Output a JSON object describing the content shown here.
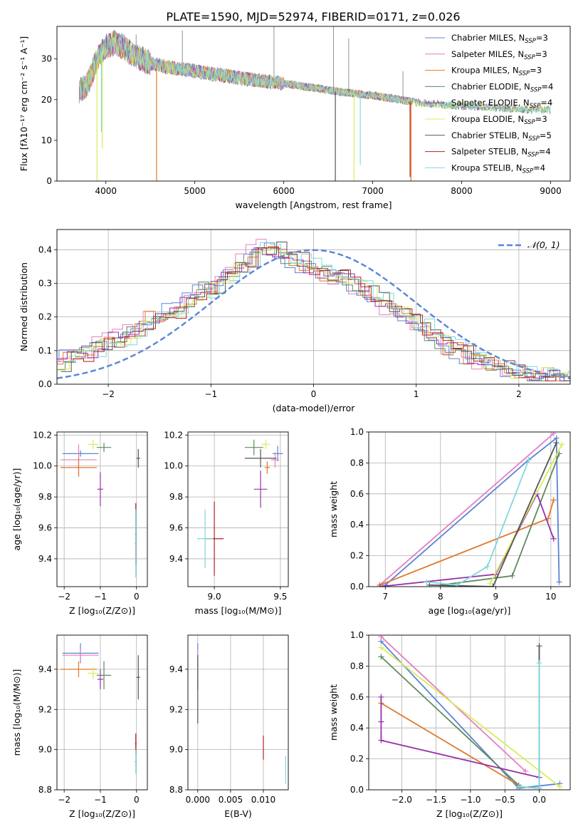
{
  "title": "PLATE=1590, MJD=52974, FIBERID=0171, z=0.026",
  "colors": {
    "Chabrier MILES": "#5b84d6",
    "Salpeter MILES": "#e47fbf",
    "Kroupa MILES": "#e0792a",
    "Chabrier ELODIE": "#5d8a5d",
    "Salpeter ELODIE": "#9b30aa",
    "Kroupa ELODIE": "#d8ec5a",
    "Chabrier STELIB": "#555555",
    "Salpeter STELIB": "#b22222",
    "Kroupa STELIB": "#7fd8dd",
    "normal_curve": "#5b84d6",
    "grid": "#b0b0b0"
  },
  "chart_data": [
    {
      "id": "spectrum",
      "type": "line",
      "title": "PLATE=1590, MJD=52974, FIBERID=0171, z=0.026",
      "xlabel": "wavelength [Angstrom, rest frame]",
      "ylabel": "Flux [fλ10⁻¹⁷ erg cm⁻² s⁻¹ A⁻¹]",
      "xlim": [
        3450,
        9220
      ],
      "ylim": [
        0,
        38
      ],
      "xticks": [
        4000,
        5000,
        6000,
        7000,
        8000,
        9000
      ],
      "yticks": [
        0,
        10,
        20,
        30
      ],
      "grid": false,
      "legend_position": "top-right",
      "legend": [
        {
          "model": "Chabrier MILES",
          "prefix": "Chabrier MILES, N",
          "sub": "SSP",
          "suffix": "=3"
        },
        {
          "model": "Salpeter MILES",
          "prefix": "Salpeter MILES, N",
          "sub": "SSP",
          "suffix": "=3"
        },
        {
          "model": "Kroupa MILES",
          "prefix": "Kroupa MILES, N",
          "sub": "SSP",
          "suffix": "=3"
        },
        {
          "model": "Chabrier ELODIE",
          "prefix": "Chabrier ELODIE, N",
          "sub": "SSP",
          "suffix": "=4"
        },
        {
          "model": "Salpeter ELODIE",
          "prefix": "Salpeter ELODIE, N",
          "sub": "SSP",
          "suffix": "=4"
        },
        {
          "model": "Kroupa ELODIE",
          "prefix": "Kroupa ELODIE, N",
          "sub": "SSP",
          "suffix": "=3"
        },
        {
          "model": "Chabrier STELIB",
          "prefix": "Chabrier STELIB, N",
          "sub": "SSP",
          "suffix": "=5"
        },
        {
          "model": "Salpeter STELIB",
          "prefix": "Salpeter STELIB, N",
          "sub": "SSP",
          "suffix": "=4"
        },
        {
          "model": "Kroupa STELIB",
          "prefix": "Kroupa STELIB, N",
          "sub": "SSP",
          "suffix": "=4"
        }
      ],
      "continuum": [
        [
          3700,
          22
        ],
        [
          3800,
          24
        ],
        [
          3900,
          30
        ],
        [
          4000,
          33
        ],
        [
          4100,
          34
        ],
        [
          4200,
          33
        ],
        [
          4300,
          31
        ],
        [
          4500,
          29
        ],
        [
          4700,
          28
        ],
        [
          5000,
          27
        ],
        [
          5300,
          26
        ],
        [
          5600,
          25
        ],
        [
          6000,
          24
        ],
        [
          6300,
          23
        ],
        [
          6600,
          22
        ],
        [
          7000,
          21
        ],
        [
          7300,
          20
        ],
        [
          7600,
          19
        ],
        [
          8000,
          18.5
        ],
        [
          8400,
          18
        ],
        [
          8800,
          17.5
        ],
        [
          9000,
          17.5
        ]
      ],
      "absorption_spikes": [
        {
          "model": "Kroupa ELODIE",
          "x": 3900,
          "y": 0
        },
        {
          "model": "Kroupa STELIB",
          "x": 3950,
          "y": 12
        },
        {
          "model": "Kroupa ELODIE",
          "x": 3960,
          "y": 8
        },
        {
          "model": "Kroupa MILES",
          "x": 4570,
          "y": 0
        },
        {
          "model": "Chabrier STELIB",
          "x": 6580,
          "y": 0
        },
        {
          "model": "Kroupa ELODIE",
          "x": 6790,
          "y": 0
        },
        {
          "model": "Kroupa STELIB",
          "x": 6860,
          "y": 4
        },
        {
          "model": "Salpeter STELIB",
          "x": 7420,
          "y": 1
        },
        {
          "model": "Kroupa MILES",
          "x": 7430,
          "y": 0
        }
      ],
      "emission_spikes": [
        {
          "x": 4340,
          "y": 36
        },
        {
          "x": 4860,
          "y": 37
        },
        {
          "x": 5890,
          "y": 38
        },
        {
          "x": 6560,
          "y": 38
        },
        {
          "x": 6730,
          "y": 35
        },
        {
          "x": 7340,
          "y": 27
        }
      ]
    },
    {
      "id": "residuals",
      "type": "histogram",
      "xlabel": "(data-model)/error",
      "ylabel": "Normed distribution",
      "xlim": [
        -2.5,
        2.5
      ],
      "ylim": [
        0,
        0.46
      ],
      "xticks": [
        -2,
        -1,
        0,
        1,
        2
      ],
      "yticks": [
        0.0,
        0.1,
        0.2,
        0.3,
        0.4
      ],
      "grid": true,
      "legend_position": "top-right",
      "curve_label": "𝒩(0, 1)",
      "bin_width": 0.1,
      "bin_start": -2.5,
      "base_hist": [
        0.06,
        0.08,
        0.09,
        0.1,
        0.12,
        0.13,
        0.14,
        0.16,
        0.18,
        0.2,
        0.21,
        0.22,
        0.24,
        0.26,
        0.28,
        0.29,
        0.31,
        0.34,
        0.37,
        0.4,
        0.41,
        0.4,
        0.38,
        0.37,
        0.35,
        0.34,
        0.33,
        0.32,
        0.31,
        0.29,
        0.27,
        0.25,
        0.23,
        0.21,
        0.19,
        0.17,
        0.15,
        0.13,
        0.11,
        0.1,
        0.08,
        0.07,
        0.06,
        0.05,
        0.04,
        0.035,
        0.03,
        0.03,
        0.025,
        0.02
      ]
    },
    {
      "id": "age_vs_Z",
      "type": "errorbar",
      "xlabel": "Z [log₁₀(Z/Z⊙)]",
      "ylabel": "age  [log₁₀(age/yr)]",
      "xlim": [
        -2.2,
        0.3
      ],
      "ylim": [
        9.22,
        10.22
      ],
      "xticks": [
        -2,
        -1,
        0
      ],
      "yticks": [
        9.4,
        9.6,
        9.8,
        10.0,
        10.2
      ],
      "grid": true,
      "points": [
        {
          "model": "Chabrier MILES",
          "x": -1.55,
          "xerr": 0.5,
          "y": 10.08,
          "yerr": 0.02
        },
        {
          "model": "Salpeter MILES",
          "x": -1.6,
          "xerr": 0.5,
          "y": 10.04,
          "yerr": 0.1
        },
        {
          "model": "Kroupa MILES",
          "x": -1.6,
          "xerr": 0.5,
          "y": 9.99,
          "yerr": 0.06
        },
        {
          "model": "Chabrier ELODIE",
          "x": -0.9,
          "xerr": 0.2,
          "y": 10.12,
          "yerr": 0.03
        },
        {
          "model": "Salpeter ELODIE",
          "x": -1.0,
          "xerr": 0.08,
          "y": 9.85,
          "yerr": 0.11
        },
        {
          "model": "Kroupa ELODIE",
          "x": -1.2,
          "xerr": 0.15,
          "y": 10.14,
          "yerr": 0.03
        },
        {
          "model": "Chabrier STELIB",
          "x": 0.05,
          "xerr": 0.05,
          "y": 10.05,
          "yerr": 0.06
        },
        {
          "model": "Salpeter STELIB",
          "x": -0.02,
          "xerr": 0.02,
          "y": 9.56,
          "yerr": 0.2
        },
        {
          "model": "Kroupa STELIB",
          "x": -0.02,
          "xerr": 0.04,
          "y": 9.5,
          "yerr": 0.22
        }
      ]
    },
    {
      "id": "age_vs_mass",
      "type": "errorbar",
      "xlabel": "mass [log₁₀(M/M⊙)]",
      "ylabel": "",
      "xlim": [
        8.8,
        9.56
      ],
      "ylim": [
        9.22,
        10.22
      ],
      "xticks": [
        9.0,
        9.5
      ],
      "yticks": [
        9.4,
        9.6,
        9.8,
        10.0,
        10.2
      ],
      "grid": true,
      "points": [
        {
          "model": "Chabrier MILES",
          "x": 9.48,
          "xerr": 0.04,
          "y": 10.08,
          "yerr": 0.05
        },
        {
          "model": "Salpeter MILES",
          "x": 9.46,
          "xerr": 0.03,
          "y": 10.04,
          "yerr": 0.05
        },
        {
          "model": "Kroupa MILES",
          "x": 9.4,
          "xerr": 0.02,
          "y": 9.99,
          "yerr": 0.04
        },
        {
          "model": "Chabrier ELODIE",
          "x": 9.3,
          "xerr": 0.07,
          "y": 10.12,
          "yerr": 0.05
        },
        {
          "model": "Salpeter ELODIE",
          "x": 9.35,
          "xerr": 0.05,
          "y": 9.85,
          "yerr": 0.12
        },
        {
          "model": "Kroupa ELODIE",
          "x": 9.39,
          "xerr": 0.03,
          "y": 10.14,
          "yerr": 0.03
        },
        {
          "model": "Chabrier STELIB",
          "x": 9.35,
          "xerr": 0.12,
          "y": 10.05,
          "yerr": 0.06
        },
        {
          "model": "Salpeter STELIB",
          "x": 9.0,
          "xerr": 0.07,
          "y": 9.53,
          "yerr": 0.24
        },
        {
          "model": "Kroupa STELIB",
          "x": 8.93,
          "xerr": 0.06,
          "y": 9.53,
          "yerr": 0.19
        }
      ]
    },
    {
      "id": "massweight_vs_age",
      "type": "line",
      "xlabel": "age  [log₁₀(age/yr)]",
      "ylabel": "mass weight",
      "xlim": [
        6.7,
        10.35
      ],
      "ylim": [
        0,
        1
      ],
      "xticks": [
        7,
        8,
        9,
        10
      ],
      "yticks": [
        0.0,
        0.2,
        0.4,
        0.6,
        0.8,
        1.0
      ],
      "grid": true,
      "series": [
        {
          "model": "Chabrier MILES",
          "x": [
            10.15,
            10.1,
            9.6,
            7.0
          ],
          "y": [
            0.03,
            0.96,
            0.82,
            0.01
          ]
        },
        {
          "model": "Salpeter MILES",
          "x": [
            6.9,
            10.05
          ],
          "y": [
            0.01,
            0.99
          ]
        },
        {
          "model": "Kroupa MILES",
          "x": [
            6.9,
            9.95,
            10.05
          ],
          "y": [
            0.01,
            0.44,
            0.56
          ]
        },
        {
          "model": "Chabrier ELODIE",
          "x": [
            8.0,
            9.3,
            10.15
          ],
          "y": [
            0.01,
            0.07,
            0.86
          ]
        },
        {
          "model": "Salpeter ELODIE",
          "x": [
            6.9,
            9.0,
            9.75,
            10.05
          ],
          "y": [
            0.0,
            0.08,
            0.6,
            0.31
          ]
        },
        {
          "model": "Kroupa ELODIE",
          "x": [
            8.9,
            10.2
          ],
          "y": [
            0.02,
            0.92
          ]
        },
        {
          "model": "Chabrier STELIB",
          "x": [
            7.8,
            8.95,
            10.1
          ],
          "y": [
            0.01,
            0.0,
            0.93
          ]
        },
        {
          "model": "Salpeter STELIB",
          "x": [],
          "y": []
        },
        {
          "model": "Kroupa STELIB",
          "x": [
            7.75,
            8.3,
            8.85,
            9.6
          ],
          "y": [
            0.03,
            0.01,
            0.13,
            0.82
          ]
        }
      ]
    },
    {
      "id": "mass_vs_Z",
      "type": "errorbar",
      "xlabel": "Z [log₁₀(Z/Z⊙)]",
      "ylabel": "mass [log₁₀(M/M⊙)]",
      "xlim": [
        -2.2,
        0.3
      ],
      "ylim": [
        8.8,
        9.57
      ],
      "xticks": [
        -2,
        -1,
        0
      ],
      "yticks": [
        8.8,
        9.0,
        9.2,
        9.4
      ],
      "grid": true,
      "points": [
        {
          "model": "Chabrier MILES",
          "x": -1.55,
          "xerr": 0.5,
          "y": 9.48,
          "yerr": 0.05
        },
        {
          "model": "Salpeter MILES",
          "x": -1.55,
          "xerr": 0.5,
          "y": 9.47,
          "yerr": 0.03
        },
        {
          "model": "Kroupa MILES",
          "x": -1.6,
          "xerr": 0.5,
          "y": 9.4,
          "yerr": 0.04
        },
        {
          "model": "Chabrier ELODIE",
          "x": -0.9,
          "xerr": 0.2,
          "y": 9.37,
          "yerr": 0.07
        },
        {
          "model": "Salpeter ELODIE",
          "x": -1.0,
          "xerr": 0.08,
          "y": 9.35,
          "yerr": 0.05
        },
        {
          "model": "Kroupa ELODIE",
          "x": -1.2,
          "xerr": 0.15,
          "y": 9.38,
          "yerr": 0.03
        },
        {
          "model": "Chabrier STELIB",
          "x": 0.05,
          "xerr": 0.05,
          "y": 9.36,
          "yerr": 0.11
        },
        {
          "model": "Salpeter STELIB",
          "x": -0.02,
          "xerr": 0.02,
          "y": 9.03,
          "yerr": 0.05
        },
        {
          "model": "Kroupa STELIB",
          "x": -0.02,
          "xerr": 0.04,
          "y": 8.94,
          "yerr": 0.06
        }
      ]
    },
    {
      "id": "mass_vs_ebv",
      "type": "errorbar",
      "xlabel": "E(B-V)",
      "ylabel": "",
      "xlim": [
        -0.0015,
        0.0138
      ],
      "ylim": [
        8.8,
        9.57
      ],
      "xticks": [
        0.0,
        0.005,
        0.01
      ],
      "xticklabels": [
        "0.000",
        "0.005",
        "0.010"
      ],
      "yticks": [
        8.8,
        9.0,
        9.2,
        9.4
      ],
      "grid": true,
      "points": [
        {
          "model": "Chabrier MILES",
          "x": 0.0,
          "xerr": 0,
          "y": 9.48,
          "yerr": 0.05
        },
        {
          "model": "Salpeter MILES",
          "x": 0.0,
          "xerr": 0,
          "y": 9.47,
          "yerr": 0.03
        },
        {
          "model": "Kroupa MILES",
          "x": 0.0,
          "xerr": 0,
          "y": 9.4,
          "yerr": 0.04
        },
        {
          "model": "Chabrier ELODIE",
          "x": 0.0,
          "xerr": 0,
          "y": 9.37,
          "yerr": 0.07
        },
        {
          "model": "Salpeter ELODIE",
          "x": 0.0,
          "xerr": 0,
          "y": 9.35,
          "yerr": 0.05
        },
        {
          "model": "Kroupa ELODIE",
          "x": 0.0,
          "xerr": 0,
          "y": 9.38,
          "yerr": 0.03
        },
        {
          "model": "Chabrier STELIB",
          "x": 0.0,
          "xerr": 0,
          "y": 9.3,
          "yerr": 0.17
        },
        {
          "model": "Salpeter STELIB",
          "x": 0.01,
          "xerr": 0,
          "y": 9.01,
          "yerr": 0.06
        },
        {
          "model": "Kroupa STELIB",
          "x": 0.0134,
          "xerr": 0,
          "y": 8.9,
          "yerr": 0.07
        }
      ]
    },
    {
      "id": "massweight_vs_Z",
      "type": "line",
      "xlabel": "Z [log₁₀(Z/Z⊙)]",
      "ylabel": "mass weight",
      "xlim": [
        -2.48,
        0.45
      ],
      "ylim": [
        0,
        1
      ],
      "xticks": [
        -2.0,
        -1.5,
        -1.0,
        -0.5,
        0.0
      ],
      "xticklabels": [
        "−2.0",
        "−1.5",
        "−1.0",
        "−0.5",
        "0.0"
      ],
      "yticks": [
        0.0,
        0.2,
        0.4,
        0.6,
        0.8,
        1.0
      ],
      "grid": true,
      "series": [
        {
          "model": "Chabrier MILES",
          "x": [
            -2.3,
            -0.3,
            0.3
          ],
          "y": [
            0.96,
            0.01,
            0.04
          ]
        },
        {
          "model": "Salpeter MILES",
          "x": [
            -2.3,
            -0.2
          ],
          "y": [
            0.99,
            0.12
          ]
        },
        {
          "model": "Kroupa MILES",
          "x": [
            -2.3,
            -0.3
          ],
          "y": [
            0.56,
            0.03
          ]
        },
        {
          "model": "Chabrier ELODIE",
          "x": [
            -2.3,
            -0.3
          ],
          "y": [
            0.86,
            0.03
          ]
        },
        {
          "model": "Salpeter ELODIE",
          "x": [
            -2.3,
            -2.3,
            -2.3,
            0.0
          ],
          "y": [
            0.6,
            0.44,
            0.32,
            0.08
          ]
        },
        {
          "model": "Kroupa ELODIE",
          "x": [
            -2.3,
            0.3
          ],
          "y": [
            0.92,
            0.02
          ]
        },
        {
          "model": "Chabrier STELIB",
          "x": [
            -0.3,
            0.0,
            0.0
          ],
          "y": [
            0.02,
            0.01,
            0.93
          ]
        },
        {
          "model": "Salpeter STELIB",
          "x": [],
          "y": []
        },
        {
          "model": "Kroupa STELIB",
          "x": [
            -0.3,
            0.0,
            0.0
          ],
          "y": [
            0.02,
            0.01,
            0.82
          ]
        }
      ]
    }
  ]
}
